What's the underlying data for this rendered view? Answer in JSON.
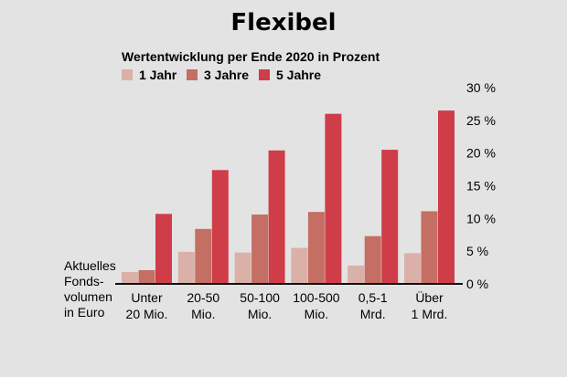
{
  "chart_data": {
    "type": "bar",
    "title": "Flexibel",
    "subtitle": "Wertentwicklung per Ende 2020 in Prozent",
    "xlabel": [
      "Aktuelles",
      "Fonds-",
      "volumen",
      "in Euro"
    ],
    "ylabel": "",
    "ylim": [
      0,
      30
    ],
    "yticks": [
      {
        "value": 0,
        "label": "0 %"
      },
      {
        "value": 5,
        "label": "5 %"
      },
      {
        "value": 10,
        "label": "10 %"
      },
      {
        "value": 15,
        "label": "15 %"
      },
      {
        "value": 20,
        "label": "20 %"
      },
      {
        "value": 25,
        "label": "25 %"
      },
      {
        "value": 30,
        "label": "30 %"
      }
    ],
    "categories": [
      [
        "Unter",
        "20 Mio."
      ],
      [
        "20-50",
        "Mio."
      ],
      [
        "50-100",
        "Mio."
      ],
      [
        "100-500",
        "Mio."
      ],
      [
        "0,5-1",
        "Mrd."
      ],
      [
        "Über",
        "1 Mrd."
      ]
    ],
    "series": [
      {
        "name": "1 Jahr",
        "color": "#dbb0a8",
        "values": [
          1.8,
          4.9,
          4.8,
          5.5,
          2.8,
          4.7
        ]
      },
      {
        "name": "3 Jahre",
        "color": "#c56e63",
        "values": [
          2.1,
          8.4,
          10.6,
          11.0,
          7.3,
          11.1
        ]
      },
      {
        "name": "5 Jahre",
        "color": "#cf3d49",
        "values": [
          10.7,
          17.4,
          20.4,
          26.0,
          20.5,
          26.5
        ]
      }
    ],
    "legend": "top-left",
    "grid": false,
    "axis_side": "right"
  }
}
